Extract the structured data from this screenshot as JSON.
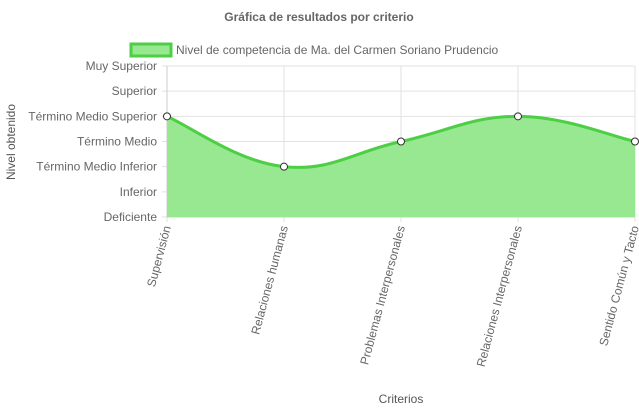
{
  "chart_data": {
    "type": "area",
    "title": "Gráfica de resultados por criterio",
    "xlabel": "Criterios",
    "ylabel": "Nivel obtenido",
    "y_levels": [
      "Deficiente",
      "Inferior",
      "Término Medio Inferior",
      "Término Medio",
      "Término Medio Superior",
      "Superior",
      "Muy Superior"
    ],
    "categories": [
      "Supervisión",
      "Relaciones humanas",
      "Problemas Interpersonales",
      "Relaciones Interpersonales",
      "Sentido Común y Tacto"
    ],
    "series": [
      {
        "name": "Nivel de competencia de Ma. del Carmen Soriano Prudencio",
        "values": [
          "Término Medio Superior",
          "Término Medio Inferior",
          "Término Medio",
          "Término Medio Superior",
          "Término Medio"
        ]
      }
    ],
    "legend_position": "top",
    "grid": true,
    "colors": {
      "fill": "#98e891",
      "line": "#4ccf44",
      "grid": "#e2e2e2",
      "point_fill": "#ffffff",
      "point_stroke": "#333333"
    }
  }
}
